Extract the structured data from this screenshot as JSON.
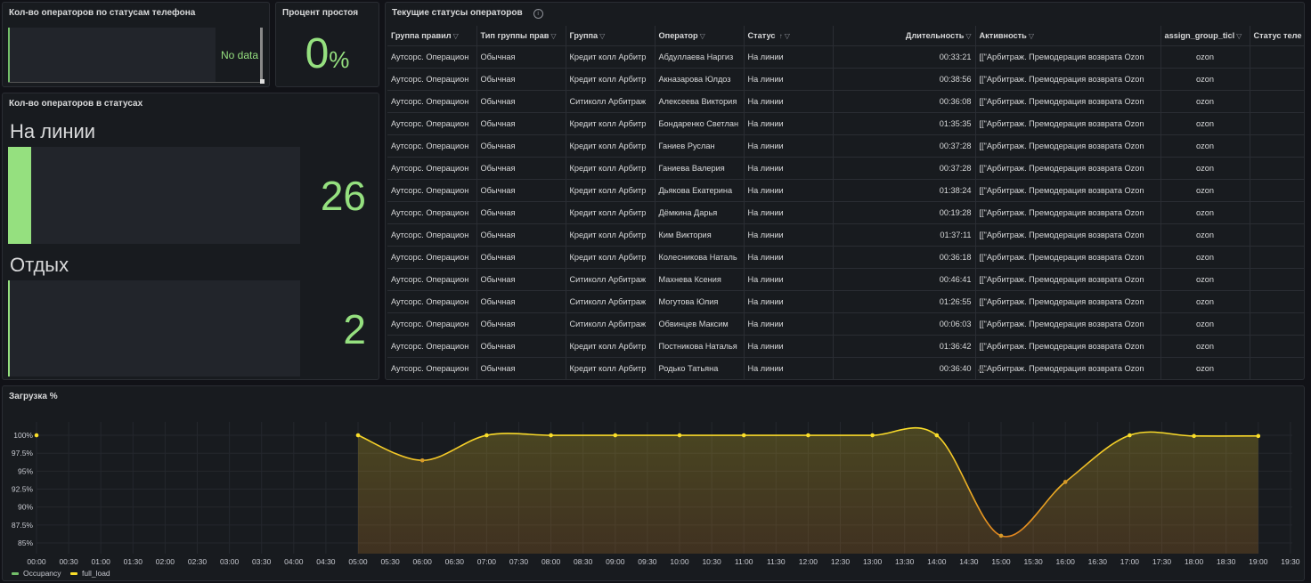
{
  "phone_panel": {
    "title": "Кол-во операторов по статусам телефона",
    "no_data": "No data"
  },
  "idle_panel": {
    "title": "Процент простоя",
    "value": "0",
    "unit": "%"
  },
  "status_panel": {
    "title": "Кол-во операторов в статусах",
    "items": [
      {
        "name": "На линии",
        "value": "26",
        "fill": 0.08
      },
      {
        "name": "Отдых",
        "value": "2",
        "fill": 0.006
      }
    ]
  },
  "table_panel": {
    "title": "Текущие статусы операторов",
    "info_icon": "info-icon",
    "columns": [
      "Группа правил",
      "Тип группы прав",
      "Группа",
      "Оператор",
      "Статус",
      "Длительность",
      "Активность",
      "assign_group_ticl",
      "Статус теле"
    ],
    "sort_icon": "↑",
    "filter_icon": "filter-icon",
    "rows": [
      [
        "Аутсорс. Операцион",
        "Обычная",
        "Кредит колл Арбитр",
        "Абдуллаева Наргиз",
        "На линии",
        "00:33:21",
        "[[\"Арбитраж. Премодерация возврата Ozon",
        "ozon",
        ""
      ],
      [
        "Аутсорс. Операцион",
        "Обычная",
        "Кредит колл Арбитр",
        "Акназарова Юлдоз",
        "На линии",
        "00:38:56",
        "[[\"Арбитраж. Премодерация возврата Ozon",
        "ozon",
        ""
      ],
      [
        "Аутсорс. Операцион",
        "Обычная",
        "Ситиколл Арбитраж",
        "Алексеева Виктория",
        "На линии",
        "00:36:08",
        "[[\"Арбитраж. Премодерация возврата Ozon",
        "ozon",
        ""
      ],
      [
        "Аутсорс. Операцион",
        "Обычная",
        "Кредит колл Арбитр",
        "Бондаренко Светлан",
        "На линии",
        "01:35:35",
        "[[\"Арбитраж. Премодерация возврата Ozon",
        "ozon",
        ""
      ],
      [
        "Аутсорс. Операцион",
        "Обычная",
        "Кредит колл Арбитр",
        "Ганиев Руслан",
        "На линии",
        "00:37:28",
        "[[\"Арбитраж. Премодерация возврата Ozon",
        "ozon",
        ""
      ],
      [
        "Аутсорс. Операцион",
        "Обычная",
        "Кредит колл Арбитр",
        "Ганиева Валерия",
        "На линии",
        "00:37:28",
        "[[\"Арбитраж. Премодерация возврата Ozon",
        "ozon",
        ""
      ],
      [
        "Аутсорс. Операцион",
        "Обычная",
        "Кредит колл Арбитр",
        "Дьякова Екатерина",
        "На линии",
        "01:38:24",
        "[[\"Арбитраж. Премодерация возврата Ozon",
        "ozon",
        ""
      ],
      [
        "Аутсорс. Операцион",
        "Обычная",
        "Кредит колл Арбитр",
        "Дёмкина Дарья",
        "На линии",
        "00:19:28",
        "[[\"Арбитраж. Премодерация возврата Ozon",
        "ozon",
        ""
      ],
      [
        "Аутсорс. Операцион",
        "Обычная",
        "Кредит колл Арбитр",
        "Ким Виктория",
        "На линии",
        "01:37:11",
        "[[\"Арбитраж. Премодерация возврата Ozon",
        "ozon",
        ""
      ],
      [
        "Аутсорс. Операцион",
        "Обычная",
        "Кредит колл Арбитр",
        "Колесникова Наталь",
        "На линии",
        "00:36:18",
        "[[\"Арбитраж. Премодерация возврата Ozon",
        "ozon",
        ""
      ],
      [
        "Аутсорс. Операцион",
        "Обычная",
        "Ситиколл Арбитраж",
        "Махнева Ксения",
        "На линии",
        "00:46:41",
        "[[\"Арбитраж. Премодерация возврата Ozon",
        "ozon",
        ""
      ],
      [
        "Аутсорс. Операцион",
        "Обычная",
        "Ситиколл Арбитраж",
        "Могутова Юлия",
        "На линии",
        "01:26:55",
        "[[\"Арбитраж. Премодерация возврата Ozon",
        "ozon",
        ""
      ],
      [
        "Аутсорс. Операцион",
        "Обычная",
        "Ситиколл Арбитраж",
        "Обвинцев Максим",
        "На линии",
        "00:06:03",
        "[[\"Арбитраж. Премодерация возврата Ozon",
        "ozon",
        ""
      ],
      [
        "Аутсорс. Операцион",
        "Обычная",
        "Кредит колл Арбитр",
        "Постникова Наталья",
        "На линии",
        "01:36:42",
        "[[\"Арбитраж. Премодерация возврата Ozon",
        "ozon",
        ""
      ],
      [
        "Аутсорс. Операцион",
        "Обычная",
        "Кредит колл Арбитр",
        "Родько Татьяна",
        "На линии",
        "00:36:40",
        "[[\"Арбитраж. Премодерация возврата Ozon",
        "ozon",
        ""
      ]
    ]
  },
  "load_panel": {
    "title": "Загрузка %"
  },
  "chart_data": {
    "type": "area",
    "title": "Загрузка %",
    "x_ticks": [
      "00:00",
      "00:30",
      "01:00",
      "01:30",
      "02:00",
      "02:30",
      "03:00",
      "03:30",
      "04:00",
      "04:30",
      "05:00",
      "05:30",
      "06:00",
      "06:30",
      "07:00",
      "07:30",
      "08:00",
      "08:30",
      "09:00",
      "09:30",
      "10:00",
      "10:30",
      "11:00",
      "11:30",
      "12:00",
      "12:30",
      "13:00",
      "13:30",
      "14:00",
      "14:30",
      "15:00",
      "15:30",
      "16:00",
      "16:30",
      "17:00",
      "17:30",
      "18:00",
      "18:30",
      "19:00",
      "19:30"
    ],
    "y_ticks": [
      "100%",
      "97.5%",
      "95%",
      "92.5%",
      "90%",
      "87.5%",
      "85%"
    ],
    "ylim": [
      84.5,
      100.5
    ],
    "legend": [
      {
        "name": "Occupancy",
        "color": "#73bf69"
      },
      {
        "name": "full_load",
        "color": "#fade2a"
      }
    ],
    "series": [
      {
        "name": "Occupancy",
        "x": [],
        "values": []
      },
      {
        "name": "full_load",
        "x": [
          "00:00",
          "05:00",
          "06:00",
          "07:00",
          "08:00",
          "09:00",
          "10:00",
          "11:00",
          "12:00",
          "13:00",
          "14:00",
          "15:00",
          "16:00",
          "17:00",
          "18:00",
          "19:00"
        ],
        "values": [
          100,
          100,
          96.5,
          100,
          100,
          100,
          100,
          100,
          100,
          100,
          100,
          86,
          93.5,
          100,
          99.9,
          99.9
        ]
      }
    ]
  }
}
